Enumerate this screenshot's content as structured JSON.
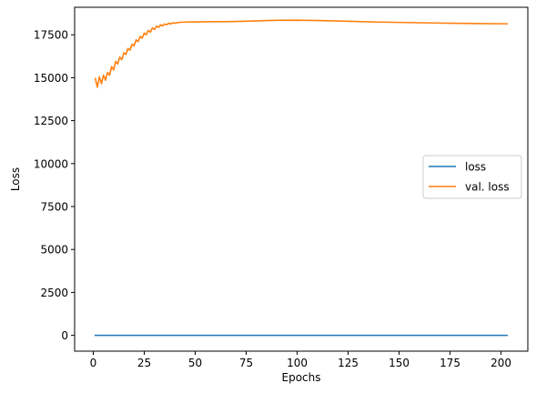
{
  "chart_data": {
    "type": "line",
    "title": "",
    "xlabel": "Epochs",
    "ylabel": "Loss",
    "xlim": [
      -9.15,
      213.15
    ],
    "ylim": [
      -920,
      19100
    ],
    "x_ticks": [
      0,
      25,
      50,
      75,
      100,
      125,
      150,
      175,
      200
    ],
    "y_ticks": [
      0,
      2500,
      5000,
      7500,
      10000,
      12500,
      15000,
      17500
    ],
    "grid": false,
    "legend_position": "center-right",
    "series": [
      {
        "name": "loss",
        "color": "#1f77b4",
        "x": [
          1,
          203
        ],
        "y": [
          0,
          0
        ]
      },
      {
        "name": "val. loss",
        "color": "#ff7f0e",
        "x": [
          1,
          2,
          3,
          4,
          5,
          6,
          7,
          8,
          9,
          10,
          11,
          12,
          13,
          14,
          15,
          16,
          17,
          18,
          19,
          20,
          21,
          22,
          23,
          24,
          25,
          26,
          27,
          28,
          29,
          30,
          31,
          32,
          33,
          34,
          35,
          36,
          37,
          38,
          39,
          40,
          42,
          45,
          50,
          55,
          60,
          65,
          70,
          75,
          80,
          90,
          100,
          110,
          120,
          130,
          140,
          150,
          160,
          170,
          180,
          190,
          200,
          203
        ],
        "y": [
          14950,
          14450,
          15050,
          14650,
          15150,
          14850,
          15300,
          15150,
          15650,
          15450,
          15950,
          15800,
          16200,
          16050,
          16450,
          16350,
          16700,
          16600,
          16950,
          16850,
          17200,
          17100,
          17400,
          17300,
          17600,
          17500,
          17750,
          17650,
          17900,
          17800,
          18000,
          17930,
          18080,
          18020,
          18130,
          18080,
          18170,
          18130,
          18200,
          18170,
          18220,
          18240,
          18250,
          18255,
          18260,
          18265,
          18275,
          18290,
          18310,
          18340,
          18350,
          18330,
          18300,
          18270,
          18240,
          18220,
          18200,
          18180,
          18165,
          18150,
          18140,
          18140
        ]
      }
    ]
  }
}
